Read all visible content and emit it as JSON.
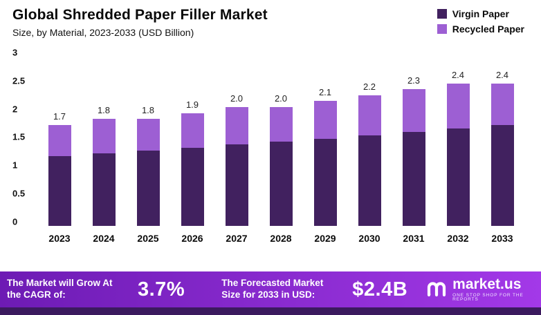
{
  "header": {
    "title": "Global Shredded Paper Filler Market",
    "subtitle": "Size, by Material, 2023-2033 (USD Billion)"
  },
  "legend": {
    "items": [
      {
        "label": "Virgin Paper",
        "color": "#41215f"
      },
      {
        "label": "Recycled Paper",
        "color": "#9d5fd3"
      }
    ]
  },
  "chart_data": {
    "type": "bar",
    "stacked": true,
    "title": "Global Shredded Paper Filler Market",
    "subtitle": "Size, by Material, 2023-2033 (USD Billion)",
    "xlabel": "",
    "ylabel": "USD Billion",
    "ylim": [
      0,
      3
    ],
    "ytick_labels": [
      "3",
      "2.5",
      "2",
      "1.5",
      "1",
      "0.5",
      "0"
    ],
    "grid": false,
    "legend_position": "top-right",
    "categories": [
      "2023",
      "2024",
      "2025",
      "2026",
      "2027",
      "2028",
      "2029",
      "2030",
      "2031",
      "2032",
      "2033"
    ],
    "series": [
      {
        "name": "Virgin Paper",
        "color": "#41215f",
        "values": [
          1.18,
          1.22,
          1.27,
          1.31,
          1.37,
          1.42,
          1.47,
          1.52,
          1.58,
          1.64,
          1.7
        ]
      },
      {
        "name": "Recycled Paper",
        "color": "#9d5fd3",
        "values": [
          0.52,
          0.58,
          0.53,
          0.59,
          0.63,
          0.58,
          0.63,
          0.68,
          0.72,
          0.76,
          0.7
        ]
      }
    ],
    "totals": [
      1.7,
      1.8,
      1.8,
      1.9,
      2.0,
      2.0,
      2.1,
      2.2,
      2.3,
      2.4,
      2.4
    ],
    "total_labels": [
      "1.7",
      "1.8",
      "1.8",
      "1.9",
      "2.0",
      "2.0",
      "2.1",
      "2.2",
      "2.3",
      "2.4",
      "2.4"
    ]
  },
  "banner": {
    "cagr_label": "The Market will Grow At the CAGR of:",
    "cagr_value": "3.7%",
    "forecast_label": "The Forecasted Market Size for 2033 in USD:",
    "forecast_value": "$2.4B",
    "logo_name": "market.us",
    "logo_tagline": "One Stop Shop For The Reports",
    "gradient_left": "#6d1bb4",
    "gradient_right": "#a339e8",
    "footer_color": "#3b1a5e"
  }
}
